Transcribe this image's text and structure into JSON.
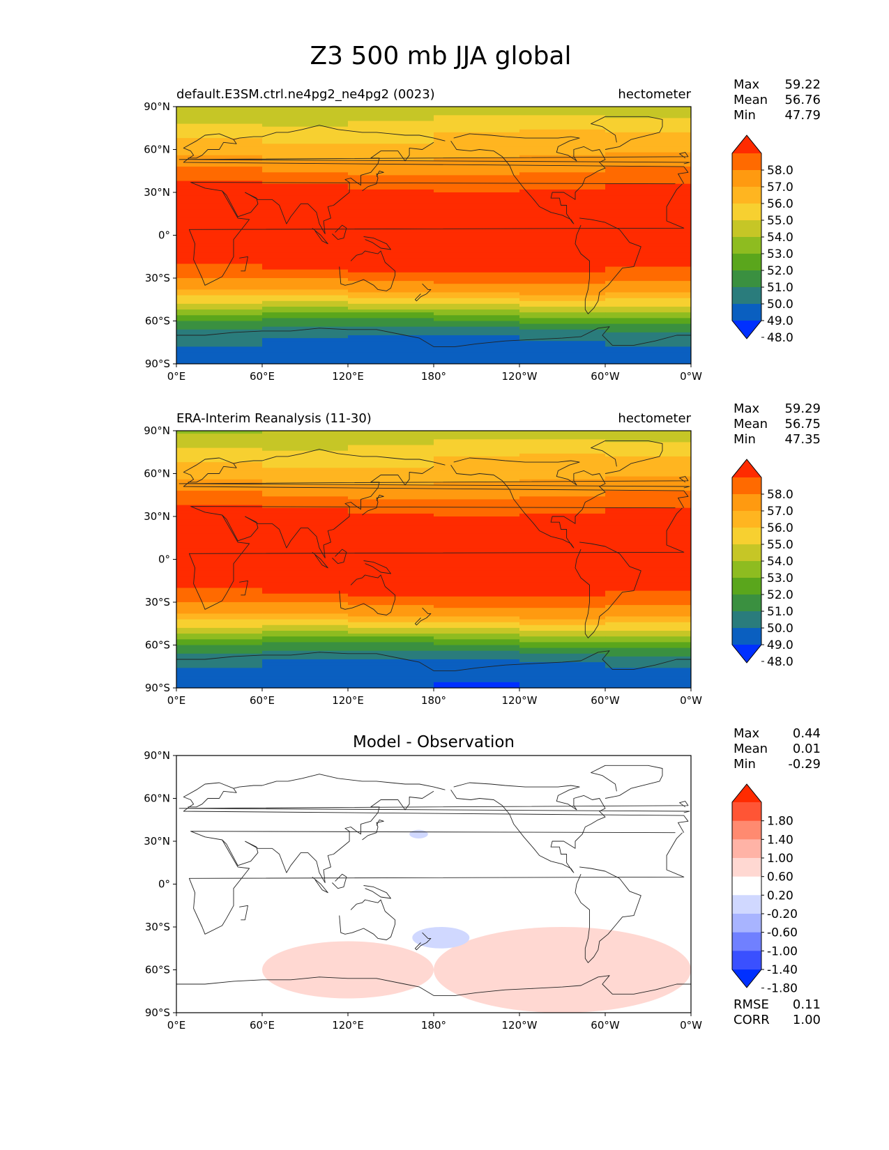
{
  "figure": {
    "title": "Z3 500 mb JJA global"
  },
  "axes": {
    "lat_ticks": [
      "90°N",
      "60°N",
      "30°N",
      "0°",
      "30°S",
      "60°S",
      "90°S"
    ],
    "lon_ticks": [
      "0°E",
      "60°E",
      "120°E",
      "180°",
      "120°W",
      "60°W",
      "0°W"
    ]
  },
  "panels": [
    {
      "id": "model",
      "left_title": "default.E3SM.ctrl.ne4pg2_ne4pg2 (0023)",
      "center_title": "",
      "right_title": "hectometer",
      "stats": [
        {
          "label": "Max",
          "value": "59.22"
        },
        {
          "label": "Mean",
          "value": "56.76"
        },
        {
          "label": "Min",
          "value": "47.79"
        }
      ],
      "colorbar": {
        "labels": [
          "58.0",
          "57.0",
          "56.0",
          "55.0",
          "54.0",
          "53.0",
          "52.0",
          "51.0",
          "50.0",
          "49.0",
          "48.0"
        ],
        "colors": [
          "#ff2b00",
          "#ff6a00",
          "#ff9a10",
          "#ffb520",
          "#f7d030",
          "#c6c626",
          "#8ebc20",
          "#5aa61c",
          "#3a9040",
          "#2a7c7c",
          "#0a5fc0",
          "#0030ff"
        ]
      },
      "extra_stats": []
    },
    {
      "id": "obs",
      "left_title": "ERA-Interim Reanalysis (11-30)",
      "center_title": "",
      "right_title": "hectometer",
      "stats": [
        {
          "label": "Max",
          "value": "59.29"
        },
        {
          "label": "Mean",
          "value": "56.75"
        },
        {
          "label": "Min",
          "value": "47.35"
        }
      ],
      "colorbar": {
        "labels": [
          "58.0",
          "57.0",
          "56.0",
          "55.0",
          "54.0",
          "53.0",
          "52.0",
          "51.0",
          "50.0",
          "49.0",
          "48.0"
        ],
        "colors": [
          "#ff2b00",
          "#ff6a00",
          "#ff9a10",
          "#ffb520",
          "#f7d030",
          "#c6c626",
          "#8ebc20",
          "#5aa61c",
          "#3a9040",
          "#2a7c7c",
          "#0a5fc0",
          "#0030ff"
        ]
      },
      "extra_stats": []
    },
    {
      "id": "diff",
      "left_title": "",
      "center_title": "Model - Observation",
      "right_title": "",
      "stats": [
        {
          "label": "Max",
          "value": "0.44"
        },
        {
          "label": "Mean",
          "value": "0.01"
        },
        {
          "label": "Min",
          "value": "-0.29"
        }
      ],
      "colorbar": {
        "labels": [
          "1.80",
          "1.40",
          "1.00",
          "0.60",
          "0.20",
          "-0.20",
          "-0.60",
          "-1.00",
          "-1.40",
          "-1.80"
        ],
        "colors": [
          "#ff2b00",
          "#ff5535",
          "#ff8a70",
          "#ffb3a6",
          "#ffd8d2",
          "#ffffff",
          "#d0d8ff",
          "#a8b4ff",
          "#7080ff",
          "#3a50ff",
          "#0030ff"
        ]
      },
      "extra_stats": [
        {
          "label": "RMSE",
          "value": "0.11"
        },
        {
          "label": "CORR",
          "value": "1.00"
        }
      ]
    }
  ],
  "chart_data": [
    {
      "type": "heatmap",
      "title": "default.E3SM.ctrl.ne4pg2_ne4pg2 (0023)",
      "units": "hectometer",
      "xlim": [
        0,
        360
      ],
      "ylim": [
        -90,
        90
      ],
      "zonal_profile": {
        "lat": [
          90,
          80,
          70,
          60,
          50,
          40,
          30,
          0,
          -20,
          -30,
          -40,
          -50,
          -60,
          -70,
          -80,
          -90
        ],
        "value": [
          53.3,
          54.0,
          55.0,
          55.5,
          56.5,
          57.5,
          58.4,
          58.7,
          58.4,
          57.3,
          56.0,
          53.5,
          51.0,
          49.3,
          48.6,
          48.4
        ]
      }
    },
    {
      "type": "heatmap",
      "title": "ERA-Interim Reanalysis (11-30)",
      "units": "hectometer",
      "xlim": [
        0,
        360
      ],
      "ylim": [
        -90,
        90
      ],
      "zonal_profile": {
        "lat": [
          90,
          80,
          70,
          60,
          50,
          40,
          30,
          0,
          -20,
          -30,
          -40,
          -50,
          -60,
          -70,
          -80,
          -90
        ],
        "value": [
          53.2,
          54.0,
          55.0,
          55.5,
          56.5,
          57.5,
          58.4,
          58.7,
          58.4,
          57.3,
          56.0,
          53.5,
          51.0,
          49.2,
          48.4,
          48.3
        ]
      }
    },
    {
      "type": "heatmap",
      "title": "Model - Observation",
      "xlim": [
        0,
        360
      ],
      "ylim": [
        -90,
        90
      ],
      "anomalies": [
        {
          "sign": "positive",
          "lon_range": [
            60,
            180
          ],
          "lat_range": [
            -40,
            -80
          ]
        },
        {
          "sign": "positive",
          "lon_range": [
            180,
            360
          ],
          "lat_range": [
            -30,
            -90
          ]
        },
        {
          "sign": "negative",
          "lon_range": [
            165,
            205
          ],
          "lat_range": [
            -30,
            -45
          ]
        },
        {
          "sign": "negative",
          "lon_range": [
            163,
            176
          ],
          "lat_range": [
            38,
            32
          ]
        }
      ]
    }
  ]
}
